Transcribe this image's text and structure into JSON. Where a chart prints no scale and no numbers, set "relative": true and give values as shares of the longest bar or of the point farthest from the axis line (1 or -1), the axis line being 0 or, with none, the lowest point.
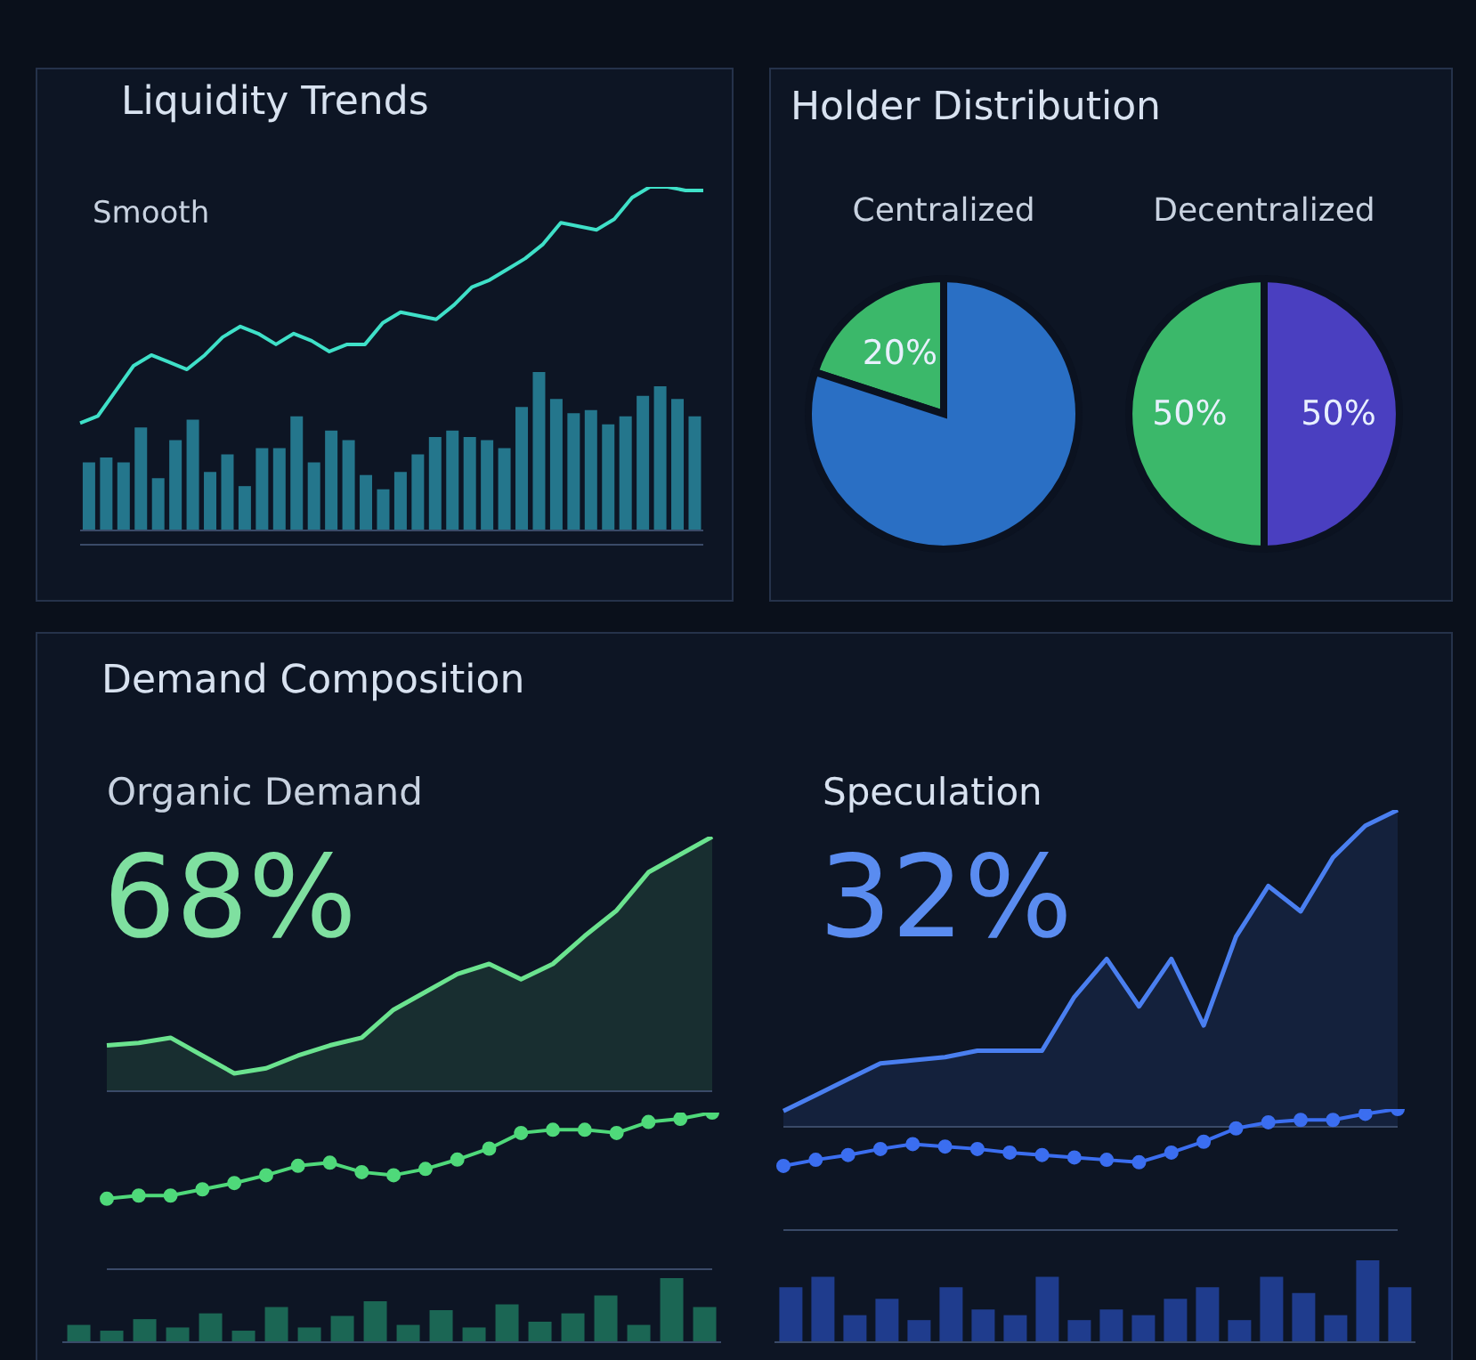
{
  "chart_data": [
    {
      "type": "line",
      "title": "Liquidity Trends",
      "subtitle": "Smooth",
      "relative": true,
      "categories": [
        null,
        null,
        null,
        null,
        null,
        null,
        null,
        null,
        null,
        null,
        null,
        null,
        null,
        null,
        null,
        null,
        null,
        null,
        null,
        null,
        null,
        null,
        null,
        null,
        null,
        null,
        null,
        null,
        null,
        null,
        null,
        null,
        null,
        null,
        null,
        null
      ],
      "tick_labels": false,
      "series": [
        {
          "color": "#3fe0c8",
          "values": [
            0.34,
            0.36,
            0.43,
            0.5,
            0.53,
            0.51,
            0.49,
            0.53,
            0.58,
            0.61,
            0.59,
            0.56,
            0.59,
            0.57,
            0.54,
            0.56,
            0.56,
            0.62,
            0.65,
            0.64,
            0.63,
            0.67,
            0.72,
            0.74,
            0.77,
            0.8,
            0.84,
            0.9,
            0.89,
            0.88,
            0.91,
            0.97,
            1.0,
            1.0,
            0.99,
            0.99
          ]
        }
      ]
    },
    {
      "type": "bar",
      "relative": true,
      "categories": [
        null,
        null,
        null,
        null,
        null,
        null,
        null,
        null,
        null,
        null,
        null,
        null,
        null,
        null,
        null,
        null,
        null,
        null,
        null,
        null,
        null,
        null,
        null,
        null,
        null,
        null,
        null,
        null,
        null,
        null,
        null,
        null,
        null,
        null,
        null,
        null
      ],
      "tick_labels": false,
      "series": [
        {
          "color": "#2a8fa6",
          "values": [
            0.43,
            0.46,
            0.43,
            0.65,
            0.33,
            0.57,
            0.7,
            0.37,
            0.48,
            0.28,
            0.52,
            0.52,
            0.72,
            0.43,
            0.63,
            0.57,
            0.35,
            0.26,
            0.37,
            0.48,
            0.59,
            0.63,
            0.59,
            0.57,
            0.52,
            0.78,
            1.0,
            0.83,
            0.74,
            0.76,
            0.67,
            0.72,
            0.85,
            0.91,
            0.83,
            0.72
          ]
        }
      ]
    },
    {
      "type": "pie",
      "title": "Holder Distribution",
      "subtitle": "Centralized",
      "categories": [
        null,
        null
      ],
      "values": [
        20,
        80
      ],
      "colors": [
        "#3bb86a",
        "#2a6fc4"
      ],
      "value_labels": [
        "20%",
        null
      ]
    },
    {
      "type": "pie",
      "subtitle": "Decentralized",
      "categories": [
        null,
        null
      ],
      "values": [
        50,
        50
      ],
      "colors": [
        "#3bb86a",
        "#4a3fc0"
      ],
      "value_labels": [
        "50%",
        "50%"
      ]
    },
    {
      "type": "area",
      "title": "Demand Composition",
      "subtitle": "Organic Demand",
      "annotations": [
        "68%"
      ],
      "relative": true,
      "categories": [
        null,
        null,
        null,
        null,
        null,
        null,
        null,
        null,
        null,
        null,
        null,
        null,
        null,
        null,
        null,
        null,
        null,
        null,
        null,
        null
      ],
      "tick_labels": false,
      "series": [
        {
          "color": "#6be38f",
          "values": [
            0.18,
            0.19,
            0.21,
            0.14,
            0.07,
            0.09,
            0.14,
            0.18,
            0.21,
            0.32,
            0.39,
            0.46,
            0.5,
            0.44,
            0.5,
            0.61,
            0.71,
            0.86,
            0.93,
            1.0
          ]
        }
      ]
    },
    {
      "type": "line",
      "relative": true,
      "marker": "circle",
      "categories": [
        null,
        null,
        null,
        null,
        null,
        null,
        null,
        null,
        null,
        null,
        null,
        null,
        null,
        null,
        null,
        null,
        null,
        null,
        null,
        null
      ],
      "tick_labels": false,
      "series": [
        {
          "color": "#4fd97a",
          "values": [
            0.45,
            0.47,
            0.47,
            0.51,
            0.55,
            0.6,
            0.66,
            0.68,
            0.62,
            0.6,
            0.64,
            0.7,
            0.77,
            0.87,
            0.89,
            0.89,
            0.87,
            0.94,
            0.96,
            1.0
          ]
        }
      ]
    },
    {
      "type": "bar",
      "relative": true,
      "categories": [
        null,
        null,
        null,
        null,
        null,
        null,
        null,
        null,
        null,
        null,
        null,
        null,
        null,
        null,
        null,
        null,
        null,
        null,
        null,
        null
      ],
      "tick_labels": false,
      "series": [
        {
          "color": "#1f7a60",
          "values": [
            0.27,
            0.18,
            0.36,
            0.23,
            0.45,
            0.18,
            0.55,
            0.23,
            0.41,
            0.64,
            0.27,
            0.5,
            0.23,
            0.59,
            0.32,
            0.45,
            0.73,
            0.27,
            1.0,
            0.55
          ]
        }
      ]
    },
    {
      "type": "area",
      "title": "Speculation",
      "annotations": [
        "32%"
      ],
      "relative": true,
      "categories": [
        null,
        null,
        null,
        null,
        null,
        null,
        null,
        null,
        null,
        null,
        null,
        null,
        null,
        null,
        null,
        null,
        null,
        null,
        null,
        null
      ],
      "tick_labels": false,
      "series": [
        {
          "color": "#4a7ff0",
          "values": [
            0.05,
            0.1,
            0.15,
            0.2,
            0.21,
            0.22,
            0.24,
            0.24,
            0.24,
            0.41,
            0.53,
            0.38,
            0.53,
            0.32,
            0.6,
            0.76,
            0.68,
            0.85,
            0.95,
            1.0
          ]
        }
      ]
    },
    {
      "type": "line",
      "relative": true,
      "marker": "circle",
      "categories": [
        null,
        null,
        null,
        null,
        null,
        null,
        null,
        null,
        null,
        null,
        null,
        null,
        null,
        null,
        null,
        null,
        null,
        null,
        null,
        null
      ],
      "tick_labels": false,
      "series": [
        {
          "color": "#3b6ef0",
          "values": [
            0.53,
            0.58,
            0.62,
            0.67,
            0.71,
            0.69,
            0.67,
            0.64,
            0.62,
            0.6,
            0.58,
            0.56,
            0.64,
            0.73,
            0.84,
            0.89,
            0.91,
            0.91,
            0.96,
            1.0
          ]
        }
      ]
    },
    {
      "type": "bar",
      "relative": true,
      "categories": [
        null,
        null,
        null,
        null,
        null,
        null,
        null,
        null,
        null,
        null,
        null,
        null,
        null,
        null,
        null,
        null,
        null,
        null,
        null,
        null
      ],
      "tick_labels": false,
      "series": [
        {
          "color": "#2446a8",
          "values": [
            0.67,
            0.8,
            0.33,
            0.53,
            0.27,
            0.67,
            0.4,
            0.33,
            0.8,
            0.27,
            0.4,
            0.33,
            0.53,
            0.67,
            0.27,
            0.8,
            0.6,
            0.33,
            1.0,
            0.67
          ]
        }
      ]
    }
  ]
}
